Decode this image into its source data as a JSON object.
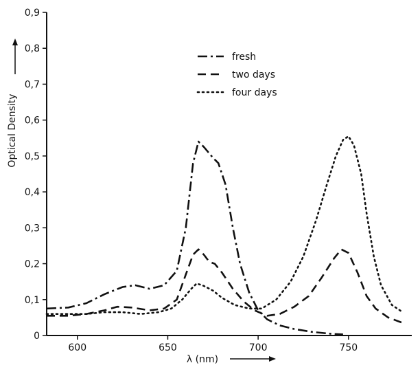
{
  "chart_data": {
    "type": "line",
    "xlabel": "λ (nm)",
    "ylabel": "Optical Density",
    "xlim": [
      583,
      785
    ],
    "ylim": [
      0,
      0.9
    ],
    "x_ticks": [
      {
        "value": 600,
        "label": "600"
      },
      {
        "value": 650,
        "label": "650"
      },
      {
        "value": 700,
        "label": "700"
      },
      {
        "value": 750,
        "label": "750"
      }
    ],
    "y_ticks": [
      {
        "value": 0,
        "label": "0"
      },
      {
        "value": 0.1,
        "label": "0,1"
      },
      {
        "value": 0.2,
        "label": "0,2"
      },
      {
        "value": 0.3,
        "label": "0,3"
      },
      {
        "value": 0.4,
        "label": "0,4"
      },
      {
        "value": 0.5,
        "label": "0,5"
      },
      {
        "value": 0.6,
        "label": "0,6"
      },
      {
        "value": 0.7,
        "label": "0,7"
      },
      {
        "value": 0.8,
        "label": "0,8"
      },
      {
        "value": 0.9,
        "label": "0,9"
      }
    ],
    "legend_position": "top-center",
    "series": [
      {
        "name": "fresh",
        "dash": "dash-dot",
        "points": [
          [
            583,
            0.075
          ],
          [
            595,
            0.078
          ],
          [
            605,
            0.09
          ],
          [
            615,
            0.115
          ],
          [
            625,
            0.135
          ],
          [
            632,
            0.14
          ],
          [
            640,
            0.13
          ],
          [
            648,
            0.14
          ],
          [
            655,
            0.18
          ],
          [
            660,
            0.3
          ],
          [
            664,
            0.48
          ],
          [
            667,
            0.54
          ],
          [
            670,
            0.525
          ],
          [
            675,
            0.495
          ],
          [
            678,
            0.48
          ],
          [
            682,
            0.42
          ],
          [
            686,
            0.3
          ],
          [
            690,
            0.2
          ],
          [
            695,
            0.12
          ],
          [
            700,
            0.07
          ],
          [
            705,
            0.045
          ],
          [
            712,
            0.028
          ],
          [
            720,
            0.018
          ],
          [
            730,
            0.01
          ],
          [
            740,
            0.005
          ],
          [
            747,
            0.003
          ]
        ]
      },
      {
        "name": "two days",
        "dash": "dashed",
        "points": [
          [
            583,
            0.055
          ],
          [
            595,
            0.055
          ],
          [
            605,
            0.06
          ],
          [
            615,
            0.07
          ],
          [
            622,
            0.08
          ],
          [
            630,
            0.078
          ],
          [
            640,
            0.07
          ],
          [
            648,
            0.075
          ],
          [
            655,
            0.1
          ],
          [
            660,
            0.17
          ],
          [
            664,
            0.225
          ],
          [
            667,
            0.24
          ],
          [
            670,
            0.225
          ],
          [
            673,
            0.205
          ],
          [
            676,
            0.2
          ],
          [
            680,
            0.175
          ],
          [
            686,
            0.13
          ],
          [
            692,
            0.095
          ],
          [
            698,
            0.07
          ],
          [
            705,
            0.055
          ],
          [
            712,
            0.06
          ],
          [
            720,
            0.08
          ],
          [
            728,
            0.11
          ],
          [
            735,
            0.16
          ],
          [
            742,
            0.215
          ],
          [
            746,
            0.24
          ],
          [
            750,
            0.23
          ],
          [
            755,
            0.175
          ],
          [
            760,
            0.11
          ],
          [
            765,
            0.075
          ],
          [
            772,
            0.05
          ],
          [
            780,
            0.035
          ]
        ]
      },
      {
        "name": "four days",
        "dash": "dotted",
        "points": [
          [
            583,
            0.06
          ],
          [
            595,
            0.06
          ],
          [
            605,
            0.06
          ],
          [
            615,
            0.065
          ],
          [
            625,
            0.065
          ],
          [
            635,
            0.06
          ],
          [
            645,
            0.065
          ],
          [
            652,
            0.075
          ],
          [
            658,
            0.1
          ],
          [
            663,
            0.13
          ],
          [
            666,
            0.145
          ],
          [
            670,
            0.138
          ],
          [
            675,
            0.125
          ],
          [
            680,
            0.105
          ],
          [
            687,
            0.085
          ],
          [
            695,
            0.075
          ],
          [
            702,
            0.075
          ],
          [
            710,
            0.1
          ],
          [
            718,
            0.15
          ],
          [
            725,
            0.22
          ],
          [
            732,
            0.32
          ],
          [
            738,
            0.42
          ],
          [
            743,
            0.5
          ],
          [
            747,
            0.545
          ],
          [
            750,
            0.555
          ],
          [
            753,
            0.53
          ],
          [
            757,
            0.45
          ],
          [
            760,
            0.34
          ],
          [
            764,
            0.22
          ],
          [
            768,
            0.14
          ],
          [
            774,
            0.085
          ],
          [
            780,
            0.065
          ]
        ]
      }
    ]
  }
}
